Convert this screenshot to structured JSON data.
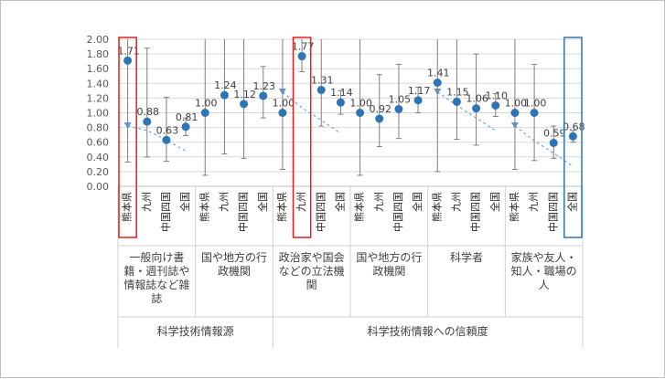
{
  "chart_data": {
    "type": "errorbar-dot",
    "title": "",
    "xlabel": "",
    "ylabel": "",
    "ylim": [
      0,
      2.0
    ],
    "yticks": [
      "0.00",
      "0.20",
      "0.40",
      "0.60",
      "0.80",
      "1.00",
      "1.20",
      "1.40",
      "1.60",
      "1.80",
      "2.00"
    ],
    "grid": true,
    "regions": [
      "熊本県",
      "九州",
      "中国四国",
      "全国"
    ],
    "super_groups": [
      {
        "label": "科学技術情報源",
        "group_count": 2
      },
      {
        "label": "科学技術情報への信頼度",
        "group_count": 4
      }
    ],
    "groups": [
      {
        "label_lines": [
          "一般向け書",
          "籍・週刊誌や",
          "情報誌など雑",
          "誌"
        ],
        "values": [
          1.71,
          0.88,
          0.63,
          0.81
        ],
        "labels": [
          "1.71",
          "0.88",
          "0.63",
          "0.81"
        ],
        "low": [
          0.33,
          0.4,
          0.34,
          0.69
        ],
        "high": [
          2.0,
          1.88,
          1.21,
          0.93
        ],
        "trend": [
          0.82,
          0.76,
          0.63,
          0.48
        ]
      },
      {
        "label_lines": [
          "国や地方の行",
          "政機関"
        ],
        "values": [
          1.0,
          1.24,
          1.12,
          1.23
        ],
        "labels": [
          "1.00",
          "1.24",
          "1.12",
          "1.23"
        ],
        "low": [
          0.15,
          0.44,
          0.38,
          0.93
        ],
        "high": [
          2.0,
          2.0,
          2.0,
          1.63
        ],
        "trend": null
      },
      {
        "label_lines": [
          "政治家や国会",
          "などの立法機",
          "関"
        ],
        "values": [
          1.0,
          1.77,
          1.31,
          1.14
        ],
        "labels": [
          "1.00",
          "1.77",
          "1.31",
          "1.14"
        ],
        "low": [
          0.23,
          1.56,
          0.82,
          0.98
        ],
        "high": [
          2.0,
          2.0,
          2.0,
          1.3
        ],
        "trend": [
          1.28,
          1.07,
          0.9,
          0.72
        ]
      },
      {
        "label_lines": [
          "国や地方の行",
          "政機関"
        ],
        "values": [
          1.0,
          0.92,
          1.05,
          1.17
        ],
        "labels": [
          "1.00",
          "0.92",
          "1.05",
          "1.17"
        ],
        "low": [
          0.15,
          0.54,
          0.65,
          1.0
        ],
        "high": [
          2.0,
          1.52,
          1.66,
          1.35
        ],
        "trend": null
      },
      {
        "label_lines": [
          "科学者"
        ],
        "values": [
          1.41,
          1.15,
          1.06,
          1.1
        ],
        "labels": [
          "1.41",
          "1.15",
          "1.06",
          "1.10"
        ],
        "low": [
          0.2,
          0.64,
          0.56,
          0.95
        ],
        "high": [
          2.0,
          2.0,
          1.8,
          1.26
        ],
        "trend": [
          1.28,
          1.1,
          0.93,
          0.76
        ]
      },
      {
        "label_lines": [
          "家族や友人・",
          "知人・職場の",
          "人"
        ],
        "values": [
          1.0,
          1.0,
          0.59,
          0.68
        ],
        "labels": [
          "1.00",
          "1.00",
          "0.59",
          "0.68"
        ],
        "low": [
          0.23,
          0.35,
          0.38,
          0.6
        ],
        "high": [
          2.0,
          1.66,
          0.82,
          0.76
        ],
        "trend": [
          0.82,
          0.62,
          0.45,
          0.27
        ]
      }
    ],
    "colors": {
      "point": "#2e75b6",
      "error": "#7f7f7f",
      "trend": "#5b9bd5",
      "highlight_red": "#e02020",
      "highlight_blue": "#2e75b6",
      "grid": "#d9d9d9"
    },
    "highlights": [
      {
        "group": 0,
        "region": 0,
        "color": "red"
      },
      {
        "group": 2,
        "region": 1,
        "color": "red"
      },
      {
        "group": 5,
        "region": 3,
        "color": "blue"
      }
    ]
  }
}
